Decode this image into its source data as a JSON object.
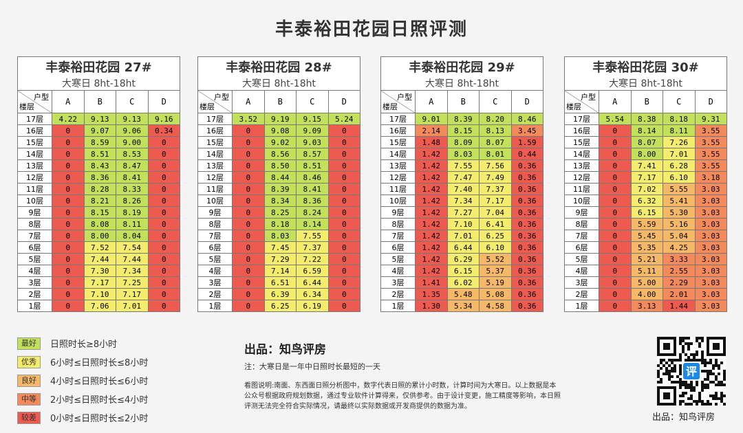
{
  "title": "丰泰裕田花园日照评测",
  "header_corner": [
    "户型",
    "楼层"
  ],
  "columns": [
    "A",
    "B",
    "C",
    "D"
  ],
  "tables": [
    {
      "title": "丰泰裕田花园 27#",
      "subtitle": "大寒日 8ht-18ht",
      "rows": [
        {
          "floor": "17层",
          "values": [
            "4.22",
            "9.13",
            "9.13",
            "9.16"
          ]
        },
        {
          "floor": "16层",
          "values": [
            "0",
            "9.07",
            "9.06",
            "0.34"
          ]
        },
        {
          "floor": "15层",
          "values": [
            "0",
            "8.59",
            "9.00",
            "0"
          ]
        },
        {
          "floor": "14层",
          "values": [
            "0",
            "8.51",
            "8.53",
            "0"
          ]
        },
        {
          "floor": "13层",
          "values": [
            "0",
            "8.43",
            "8.47",
            "0"
          ]
        },
        {
          "floor": "12层",
          "values": [
            "0",
            "8.36",
            "8.41",
            "0"
          ]
        },
        {
          "floor": "11层",
          "values": [
            "0",
            "8.28",
            "8.33",
            "0"
          ]
        },
        {
          "floor": "10层",
          "values": [
            "0",
            "8.21",
            "8.26",
            "0"
          ]
        },
        {
          "floor": "9层",
          "values": [
            "0",
            "8.15",
            "8.19",
            "0"
          ]
        },
        {
          "floor": "8层",
          "values": [
            "0",
            "8.08",
            "8.11",
            "0"
          ]
        },
        {
          "floor": "7层",
          "values": [
            "0",
            "8.00",
            "8.04",
            "0"
          ]
        },
        {
          "floor": "6层",
          "values": [
            "0",
            "7.52",
            "7.54",
            "0"
          ]
        },
        {
          "floor": "5层",
          "values": [
            "0",
            "7.44",
            "7.44",
            "0"
          ]
        },
        {
          "floor": "4层",
          "values": [
            "0",
            "7.30",
            "7.34",
            "0"
          ]
        },
        {
          "floor": "3层",
          "values": [
            "0",
            "7.17",
            "7.25",
            "0"
          ]
        },
        {
          "floor": "2层",
          "values": [
            "0",
            "7.10",
            "7.17",
            "0"
          ]
        },
        {
          "floor": "1层",
          "values": [
            "0",
            "7.06",
            "7.01",
            "0"
          ]
        }
      ]
    },
    {
      "title": "丰泰裕田花园 28#",
      "subtitle": "大寒日 8ht-18ht",
      "rows": [
        {
          "floor": "17层",
          "values": [
            "3.52",
            "9.19",
            "9.15",
            "5.24"
          ]
        },
        {
          "floor": "16层",
          "values": [
            "0",
            "9.08",
            "9.09",
            "0"
          ]
        },
        {
          "floor": "15层",
          "values": [
            "0",
            "9.02",
            "9.03",
            "0"
          ]
        },
        {
          "floor": "14层",
          "values": [
            "0",
            "8.56",
            "8.57",
            "0"
          ]
        },
        {
          "floor": "13层",
          "values": [
            "0",
            "8.50",
            "8.51",
            "0"
          ]
        },
        {
          "floor": "12层",
          "values": [
            "0",
            "8.44",
            "8.46",
            "0"
          ]
        },
        {
          "floor": "11层",
          "values": [
            "0",
            "8.39",
            "8.41",
            "0"
          ]
        },
        {
          "floor": "10层",
          "values": [
            "0",
            "8.34",
            "8.36",
            "0"
          ]
        },
        {
          "floor": "9层",
          "values": [
            "0",
            "8.25",
            "8.24",
            "0"
          ]
        },
        {
          "floor": "8层",
          "values": [
            "0",
            "8.18",
            "8.14",
            "0"
          ]
        },
        {
          "floor": "7层",
          "values": [
            "0",
            "8.03",
            "7.55",
            "0"
          ]
        },
        {
          "floor": "6层",
          "values": [
            "0",
            "7.45",
            "7.37",
            "0"
          ]
        },
        {
          "floor": "5层",
          "values": [
            "0",
            "7.29",
            "7.22",
            "0"
          ]
        },
        {
          "floor": "4层",
          "values": [
            "0",
            "7.14",
            "6.59",
            "0"
          ]
        },
        {
          "floor": "3层",
          "values": [
            "0",
            "6.51",
            "6.44",
            "0"
          ]
        },
        {
          "floor": "2层",
          "values": [
            "0",
            "6.39",
            "6.34",
            "0"
          ]
        },
        {
          "floor": "1层",
          "values": [
            "0",
            "6.25",
            "6.19",
            "0"
          ]
        }
      ]
    },
    {
      "title": "丰泰裕田花园 29#",
      "subtitle": "大寒日 8ht-18ht",
      "rows": [
        {
          "floor": "17层",
          "values": [
            "9.01",
            "8.39",
            "8.20",
            "8.46"
          ]
        },
        {
          "floor": "16层",
          "values": [
            "2.14",
            "8.15",
            "8.13",
            "3.45"
          ]
        },
        {
          "floor": "15层",
          "values": [
            "1.48",
            "8.09",
            "8.07",
            "1.59"
          ]
        },
        {
          "floor": "14层",
          "values": [
            "1.42",
            "8.03",
            "8.01",
            "0.44"
          ]
        },
        {
          "floor": "13层",
          "values": [
            "1.42",
            "7.55",
            "7.56",
            "0.36"
          ]
        },
        {
          "floor": "12层",
          "values": [
            "1.42",
            "7.47",
            "7.49",
            "0.36"
          ]
        },
        {
          "floor": "11层",
          "values": [
            "1.42",
            "7.40",
            "7.37",
            "0.36"
          ]
        },
        {
          "floor": "10层",
          "values": [
            "1.42",
            "7.34",
            "7.17",
            "0.36"
          ]
        },
        {
          "floor": "9层",
          "values": [
            "1.42",
            "7.27",
            "7.04",
            "0.36"
          ]
        },
        {
          "floor": "8层",
          "values": [
            "1.42",
            "7.10",
            "6.41",
            "0.36"
          ]
        },
        {
          "floor": "7层",
          "values": [
            "1.42",
            "7.01",
            "6.25",
            "0.36"
          ]
        },
        {
          "floor": "6层",
          "values": [
            "1.42",
            "6.44",
            "6.10",
            "0.36"
          ]
        },
        {
          "floor": "5层",
          "values": [
            "1.42",
            "6.29",
            "5.52",
            "0.36"
          ]
        },
        {
          "floor": "4层",
          "values": [
            "1.42",
            "6.15",
            "5.37",
            "0.36"
          ]
        },
        {
          "floor": "3层",
          "values": [
            "1.41",
            "6.02",
            "5.19",
            "0.36"
          ]
        },
        {
          "floor": "2层",
          "values": [
            "1.35",
            "5.48",
            "5.08",
            "0.36"
          ]
        },
        {
          "floor": "1层",
          "values": [
            "1.30",
            "5.34",
            "4.58",
            "0.36"
          ]
        }
      ]
    },
    {
      "title": "丰泰裕田花园 30#",
      "subtitle": "大寒日 8ht-18ht",
      "rows": [
        {
          "floor": "17层",
          "values": [
            "5.54",
            "8.38",
            "8.18",
            "9.31"
          ]
        },
        {
          "floor": "16层",
          "values": [
            "0",
            "8.14",
            "8.11",
            "3.55"
          ]
        },
        {
          "floor": "15层",
          "values": [
            "0",
            "8.07",
            "7.26",
            "3.55"
          ]
        },
        {
          "floor": "14层",
          "values": [
            "0",
            "8.00",
            "7.01",
            "3.55"
          ]
        },
        {
          "floor": "13层",
          "values": [
            "0",
            "7.41",
            "6.28",
            "3.55"
          ]
        },
        {
          "floor": "12层",
          "values": [
            "0",
            "7.17",
            "6.10",
            "3.18"
          ]
        },
        {
          "floor": "11层",
          "values": [
            "0",
            "7.02",
            "5.55",
            "3.03"
          ]
        },
        {
          "floor": "10层",
          "values": [
            "0",
            "6.32",
            "5.41",
            "3.03"
          ]
        },
        {
          "floor": "9层",
          "values": [
            "0",
            "6.15",
            "5.30",
            "3.03"
          ]
        },
        {
          "floor": "8层",
          "values": [
            "0",
            "5.59",
            "5.16",
            "3.03"
          ]
        },
        {
          "floor": "7层",
          "values": [
            "0",
            "5.45",
            "5.04",
            "3.03"
          ]
        },
        {
          "floor": "6层",
          "values": [
            "0",
            "5.35",
            "4.25",
            "3.03"
          ]
        },
        {
          "floor": "5层",
          "values": [
            "0",
            "5.21",
            "3.33",
            "3.03"
          ]
        },
        {
          "floor": "4层",
          "values": [
            "0",
            "5.11",
            "2.55",
            "3.03"
          ]
        },
        {
          "floor": "3层",
          "values": [
            "0",
            "5.00",
            "2.29",
            "3.03"
          ]
        },
        {
          "floor": "2层",
          "values": [
            "0",
            "4.00",
            "2.01",
            "3.03"
          ]
        },
        {
          "floor": "1层",
          "values": [
            "0",
            "3.13",
            "1.44",
            "3.03"
          ]
        }
      ]
    }
  ],
  "legend": [
    {
      "tag": "最好",
      "text": "日照时长≥8小时",
      "min": 8,
      "color": "#c3e05a"
    },
    {
      "tag": "优秀",
      "text": "6小时≤日照时长≤8小时",
      "min": 6,
      "color": "#f3ec6c"
    },
    {
      "tag": "良好",
      "text": "4小时≤日照时长≤6小时",
      "min": 4,
      "color": "#f5b866"
    },
    {
      "tag": "中等",
      "text": "2小时≤日照时长≤4小时",
      "min": 2,
      "color": "#f28a5c"
    },
    {
      "tag": "较差",
      "text": "0小时≤日照时长≤2小时",
      "min": 0,
      "color": "#ec5a50"
    }
  ],
  "footer": {
    "producer": "出品：知鸟评房",
    "note": "注：大寒日是一年中日照时长最短的一天",
    "description": "看图说明:南面、东西面日照分析图中，数字代表日照的累计小时数，计算时间为大寒日。以上数据是本公众号根据政府规划数据，通过专业软件计算得来，仅供参考。由于设计变更，施工精度等影响，本日照评测无法完全符合实际情况，请最终以实际数据或开发商提供的数据为准。"
  },
  "qr": {
    "badge": "评",
    "caption": "出品：知鸟评房"
  }
}
